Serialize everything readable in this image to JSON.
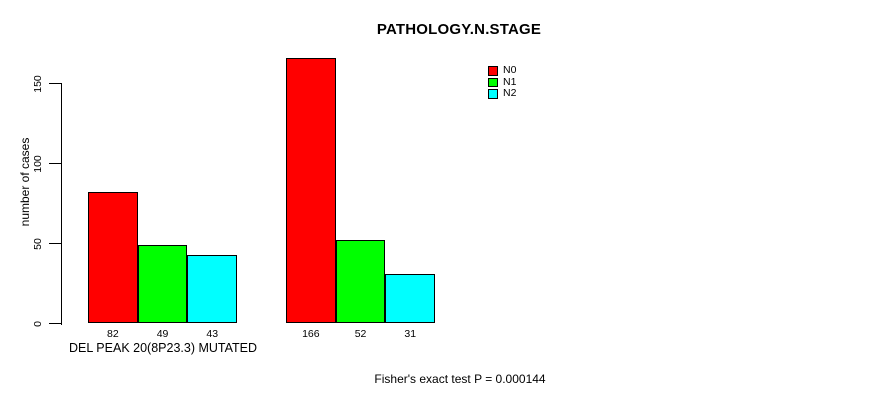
{
  "chart_data": {
    "type": "bar",
    "title": "PATHOLOGY.N.STAGE",
    "ylabel": "number of cases",
    "xlabel": "",
    "categories": [
      "DEL PEAK 20(8P23.3) MUTATED",
      ""
    ],
    "series": [
      {
        "name": "N0",
        "color": "#ff0000",
        "values": [
          82,
          166
        ]
      },
      {
        "name": "N1",
        "color": "#00ff00",
        "values": [
          49,
          52
        ]
      },
      {
        "name": "N2",
        "color": "#00ffff",
        "values": [
          43,
          31
        ]
      }
    ],
    "bar_value_labels": [
      [
        "82",
        "49",
        "43"
      ],
      [
        "166",
        "52",
        "31"
      ]
    ],
    "yticks": [
      0,
      50,
      100,
      150
    ],
    "ylim": [
      0,
      170
    ],
    "grid": false,
    "legend_position": "top-right",
    "legend_entries": [
      "N0",
      "N1",
      "N2"
    ],
    "annotation": "Fisher's exact test P = 0.000144",
    "colors": {
      "N0": "#ff0000",
      "N1": "#00ff00",
      "N2": "#00ffff",
      "axis": "#000000",
      "background": "#ffffff"
    }
  }
}
